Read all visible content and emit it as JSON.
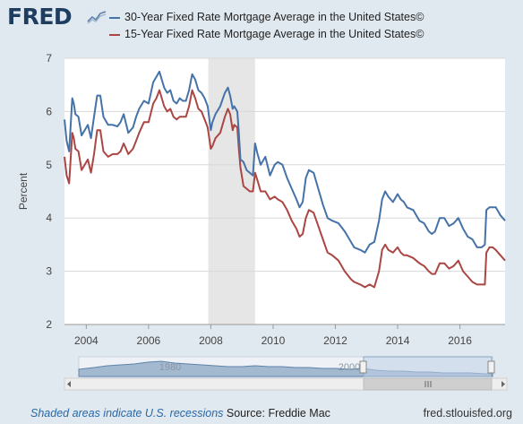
{
  "header": {
    "logo_text": "FRED",
    "logo_icon": "trend-line-icon"
  },
  "legend": {
    "items": [
      {
        "label": "30-Year Fixed Rate Mortgage Average in the United States©",
        "color": "#4572a7"
      },
      {
        "label": "15-Year Fixed Rate Mortgage Average in the United States©",
        "color": "#aa4643"
      }
    ]
  },
  "chart_data": {
    "type": "line",
    "ylabel": "Percent",
    "ylim": [
      2,
      7
    ],
    "yticks": [
      2,
      3,
      4,
      5,
      6,
      7
    ],
    "xlim": [
      2003.3,
      2017.45
    ],
    "xticks": [
      2004,
      2006,
      2008,
      2010,
      2012,
      2014,
      2016
    ],
    "grid": true,
    "recession": {
      "start": 2007.92,
      "end": 2009.42,
      "color": "#e6e6e6"
    },
    "series": [
      {
        "name": "30-Year Fixed Rate Mortgage Average in the United States©",
        "color": "#4572a7",
        "x": [
          2003.3,
          2003.37,
          2003.45,
          2003.55,
          2003.6,
          2003.65,
          2003.75,
          2003.85,
          2003.95,
          2004.05,
          2004.15,
          2004.25,
          2004.35,
          2004.45,
          2004.55,
          2004.7,
          2004.85,
          2005.0,
          2005.1,
          2005.2,
          2005.35,
          2005.5,
          2005.6,
          2005.7,
          2005.85,
          2006.0,
          2006.15,
          2006.25,
          2006.35,
          2006.5,
          2006.6,
          2006.7,
          2006.8,
          2006.9,
          2007.0,
          2007.1,
          2007.2,
          2007.3,
          2007.4,
          2007.5,
          2007.6,
          2007.7,
          2007.8,
          2007.9,
          2008.0,
          2008.05,
          2008.15,
          2008.3,
          2008.45,
          2008.55,
          2008.62,
          2008.7,
          2008.75,
          2008.85,
          2008.9,
          2008.95,
          2009.05,
          2009.15,
          2009.25,
          2009.35,
          2009.42,
          2009.5,
          2009.6,
          2009.75,
          2009.9,
          2010.05,
          2010.15,
          2010.3,
          2010.45,
          2010.6,
          2010.75,
          2010.85,
          2010.95,
          2011.05,
          2011.15,
          2011.3,
          2011.45,
          2011.6,
          2011.75,
          2011.9,
          2012.1,
          2012.3,
          2012.5,
          2012.6,
          2012.8,
          2012.95,
          2013.1,
          2013.25,
          2013.4,
          2013.5,
          2013.6,
          2013.7,
          2013.85,
          2014.0,
          2014.1,
          2014.2,
          2014.3,
          2014.5,
          2014.7,
          2014.85,
          2015.0,
          2015.1,
          2015.2,
          2015.35,
          2015.5,
          2015.65,
          2015.8,
          2015.95,
          2016.1,
          2016.25,
          2016.4,
          2016.55,
          2016.7,
          2016.8,
          2016.85,
          2016.95,
          2017.05,
          2017.15,
          2017.3,
          2017.45
        ],
        "y": [
          5.85,
          5.45,
          5.25,
          6.25,
          6.15,
          5.95,
          5.9,
          5.55,
          5.65,
          5.75,
          5.5,
          5.9,
          6.3,
          6.3,
          5.9,
          5.75,
          5.75,
          5.72,
          5.8,
          5.95,
          5.6,
          5.7,
          5.9,
          6.05,
          6.2,
          6.15,
          6.55,
          6.65,
          6.75,
          6.45,
          6.35,
          6.4,
          6.2,
          6.15,
          6.25,
          6.2,
          6.2,
          6.4,
          6.7,
          6.6,
          6.4,
          6.35,
          6.25,
          6.1,
          5.65,
          5.8,
          5.95,
          6.1,
          6.35,
          6.45,
          6.3,
          6.05,
          6.1,
          6.0,
          5.6,
          5.1,
          5.05,
          4.9,
          4.85,
          4.8,
          5.4,
          5.2,
          5.0,
          5.15,
          4.8,
          5.0,
          5.05,
          5.0,
          4.75,
          4.55,
          4.35,
          4.2,
          4.3,
          4.75,
          4.9,
          4.85,
          4.55,
          4.25,
          4.0,
          3.95,
          3.9,
          3.75,
          3.55,
          3.45,
          3.4,
          3.35,
          3.5,
          3.55,
          3.95,
          4.35,
          4.5,
          4.4,
          4.3,
          4.45,
          4.35,
          4.3,
          4.2,
          4.15,
          3.95,
          3.9,
          3.75,
          3.7,
          3.75,
          4.0,
          4.0,
          3.85,
          3.9,
          4.0,
          3.8,
          3.65,
          3.6,
          3.45,
          3.45,
          3.5,
          4.15,
          4.2,
          4.2,
          4.2,
          4.05,
          3.95
        ]
      },
      {
        "name": "15-Year Fixed Rate Mortgage Average in the United States©",
        "color": "#aa4643",
        "x": [
          2003.3,
          2003.37,
          2003.45,
          2003.55,
          2003.6,
          2003.65,
          2003.75,
          2003.85,
          2003.95,
          2004.05,
          2004.15,
          2004.25,
          2004.35,
          2004.45,
          2004.55,
          2004.7,
          2004.85,
          2005.0,
          2005.1,
          2005.2,
          2005.35,
          2005.5,
          2005.6,
          2005.7,
          2005.85,
          2006.0,
          2006.15,
          2006.25,
          2006.35,
          2006.5,
          2006.6,
          2006.7,
          2006.8,
          2006.9,
          2007.0,
          2007.1,
          2007.2,
          2007.3,
          2007.4,
          2007.5,
          2007.6,
          2007.7,
          2007.8,
          2007.9,
          2008.0,
          2008.05,
          2008.15,
          2008.3,
          2008.45,
          2008.55,
          2008.62,
          2008.7,
          2008.75,
          2008.85,
          2008.9,
          2008.95,
          2009.05,
          2009.15,
          2009.25,
          2009.35,
          2009.42,
          2009.5,
          2009.6,
          2009.75,
          2009.9,
          2010.05,
          2010.15,
          2010.3,
          2010.45,
          2010.6,
          2010.75,
          2010.85,
          2010.95,
          2011.05,
          2011.15,
          2011.3,
          2011.45,
          2011.6,
          2011.75,
          2011.9,
          2012.1,
          2012.3,
          2012.5,
          2012.6,
          2012.8,
          2012.95,
          2013.1,
          2013.25,
          2013.4,
          2013.5,
          2013.6,
          2013.7,
          2013.85,
          2014.0,
          2014.1,
          2014.2,
          2014.3,
          2014.5,
          2014.7,
          2014.85,
          2015.0,
          2015.1,
          2015.2,
          2015.35,
          2015.5,
          2015.65,
          2015.8,
          2015.95,
          2016.1,
          2016.25,
          2016.4,
          2016.55,
          2016.7,
          2016.8,
          2016.85,
          2016.95,
          2017.05,
          2017.15,
          2017.3,
          2017.45
        ],
        "y": [
          5.15,
          4.8,
          4.65,
          5.6,
          5.5,
          5.3,
          5.25,
          4.9,
          5.0,
          5.1,
          4.85,
          5.2,
          5.65,
          5.65,
          5.25,
          5.15,
          5.2,
          5.2,
          5.25,
          5.4,
          5.2,
          5.3,
          5.45,
          5.6,
          5.8,
          5.8,
          6.15,
          6.25,
          6.4,
          6.1,
          6.0,
          6.05,
          5.9,
          5.85,
          5.9,
          5.9,
          5.9,
          6.1,
          6.4,
          6.25,
          6.05,
          6.0,
          5.85,
          5.7,
          5.3,
          5.35,
          5.5,
          5.6,
          5.9,
          6.05,
          5.95,
          5.65,
          5.75,
          5.7,
          5.3,
          4.95,
          4.6,
          4.55,
          4.5,
          4.5,
          4.85,
          4.7,
          4.5,
          4.5,
          4.35,
          4.4,
          4.35,
          4.3,
          4.15,
          3.95,
          3.8,
          3.65,
          3.7,
          4.0,
          4.15,
          4.1,
          3.85,
          3.6,
          3.35,
          3.3,
          3.2,
          3.0,
          2.85,
          2.8,
          2.75,
          2.7,
          2.75,
          2.7,
          3.0,
          3.4,
          3.5,
          3.4,
          3.35,
          3.45,
          3.35,
          3.3,
          3.3,
          3.25,
          3.15,
          3.1,
          3.0,
          2.95,
          2.95,
          3.15,
          3.15,
          3.05,
          3.1,
          3.2,
          3.0,
          2.9,
          2.8,
          2.75,
          2.75,
          2.75,
          3.35,
          3.45,
          3.45,
          3.4,
          3.3,
          3.2
        ]
      }
    ]
  },
  "navigator": {
    "labels": [
      "1980",
      "2000"
    ],
    "scroll_icon": "grip-icon"
  },
  "footer": {
    "note": "Shaded areas indicate U.S. recessions",
    "source": "Source: Freddie Mac",
    "url": "fred.stlouisfed.org"
  }
}
